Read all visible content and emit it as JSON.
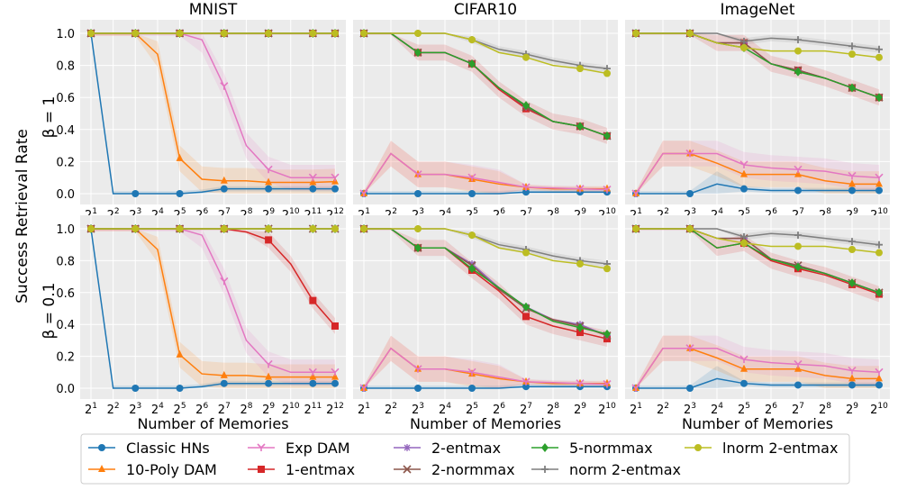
{
  "figure": {
    "ylabel": "Success Retrieval Rate",
    "xlabel": "Number of Memories",
    "row_labels": [
      "β = 1",
      "β = 0.1"
    ],
    "column_titles": [
      "MNIST",
      "CIFAR10",
      "ImageNet"
    ]
  },
  "legend": {
    "entries": [
      {
        "name": "Classic HNs",
        "color": "#1f77b4",
        "marker": "circle"
      },
      {
        "name": "10-Poly DAM",
        "color": "#ff7f0e",
        "marker": "triangle"
      },
      {
        "name": "Exp DAM",
        "color": "#e377c2",
        "marker": "tri_down"
      },
      {
        "name": "1-entmax",
        "color": "#d62728",
        "marker": "square"
      },
      {
        "name": "2-entmax",
        "color": "#9467bd",
        "marker": "star"
      },
      {
        "name": "2-normmax",
        "color": "#8c564b",
        "marker": "x"
      },
      {
        "name": "5-normmax",
        "color": "#2ca02c",
        "marker": "diamond"
      },
      {
        "name": "norm 2-entmax",
        "color": "#7f7f7f",
        "marker": "plus"
      },
      {
        "name": "lnorm 2-entmax",
        "color": "#bcbd22",
        "marker": "circle"
      }
    ]
  },
  "chart_data": [
    {
      "type": "line",
      "title": "MNIST",
      "row_label": "β = 1",
      "panel": "MNIST β=1",
      "x_exponents": [
        1,
        2,
        3,
        4,
        5,
        6,
        7,
        8,
        9,
        10,
        11,
        12
      ],
      "x_tick_labels": [
        "2^1",
        "2^2",
        "2^3",
        "2^4",
        "2^5",
        "2^6",
        "2^7",
        "2^8",
        "2^9",
        "2^10",
        "2^11",
        "2^12"
      ],
      "ylim": [
        0,
        1.05
      ],
      "y_ticks": [
        0.0,
        0.2,
        0.4,
        0.6,
        0.8,
        1.0
      ],
      "series": [
        {
          "name": "Classic HNs",
          "values": [
            1.0,
            0.0,
            0.0,
            0.0,
            0.0,
            0.01,
            0.03,
            0.03,
            0.03,
            0.03,
            0.03,
            0.03
          ]
        },
        {
          "name": "10-Poly DAM",
          "values": [
            1.0,
            1.0,
            1.0,
            0.87,
            0.22,
            0.09,
            0.08,
            0.08,
            0.07,
            0.07,
            0.07,
            0.075
          ]
        },
        {
          "name": "Exp DAM",
          "values": [
            1.0,
            1.0,
            1.0,
            1.0,
            1.0,
            0.96,
            0.67,
            0.3,
            0.15,
            0.1,
            0.1,
            0.1
          ]
        },
        {
          "name": "1-entmax",
          "values": [
            1,
            1,
            1,
            1,
            1,
            1,
            1,
            1,
            1,
            1,
            1,
            1
          ]
        },
        {
          "name": "2-entmax",
          "values": [
            1,
            1,
            1,
            1,
            1,
            1,
            1,
            1,
            1,
            1,
            1,
            1
          ]
        },
        {
          "name": "2-normmax",
          "values": [
            1,
            1,
            1,
            1,
            1,
            1,
            1,
            1,
            1,
            1,
            1,
            1
          ]
        },
        {
          "name": "5-normmax",
          "values": [
            1,
            1,
            1,
            1,
            1,
            1,
            1,
            1,
            1,
            1,
            1,
            1
          ]
        },
        {
          "name": "norm 2-entmax",
          "values": [
            1,
            1,
            1,
            1,
            1,
            1,
            1,
            1,
            1,
            1,
            1,
            1
          ]
        },
        {
          "name": "lnorm 2-entmax",
          "values": [
            1,
            1,
            1,
            1,
            1,
            1,
            1,
            1,
            1,
            1,
            1,
            1
          ]
        }
      ]
    },
    {
      "type": "line",
      "title": "CIFAR10",
      "row_label": "β = 1",
      "panel": "CIFAR10 β=1",
      "x_exponents": [
        1,
        2,
        3,
        4,
        5,
        6,
        7,
        8,
        9,
        10
      ],
      "x_tick_labels": [
        "2^1",
        "2^2",
        "2^3",
        "2^4",
        "2^5",
        "2^6",
        "2^7",
        "2^8",
        "2^9",
        "2^10"
      ],
      "ylim": [
        0,
        1.05
      ],
      "y_ticks": [
        0.0,
        0.2,
        0.4,
        0.6,
        0.8,
        1.0
      ],
      "series": [
        {
          "name": "Classic HNs",
          "values": [
            0.0,
            0.0,
            0.0,
            0.0,
            0.0,
            0.0,
            0.01,
            0.01,
            0.01,
            0.01
          ]
        },
        {
          "name": "10-Poly DAM",
          "values": [
            0.0,
            0.25,
            0.12,
            0.12,
            0.09,
            0.06,
            0.04,
            0.03,
            0.03,
            0.03
          ]
        },
        {
          "name": "Exp DAM",
          "values": [
            0.0,
            0.25,
            0.12,
            0.12,
            0.1,
            0.07,
            0.04,
            0.035,
            0.03,
            0.025
          ]
        },
        {
          "name": "1-entmax",
          "values": [
            1.0,
            1.0,
            0.88,
            0.88,
            0.81,
            0.65,
            0.53,
            0.45,
            0.42,
            0.36
          ]
        },
        {
          "name": "2-entmax",
          "values": [
            1.0,
            1.0,
            0.88,
            0.88,
            0.81,
            0.66,
            0.54,
            0.45,
            0.42,
            0.36
          ]
        },
        {
          "name": "2-normmax",
          "values": [
            1.0,
            1.0,
            0.88,
            0.88,
            0.81,
            0.66,
            0.54,
            0.45,
            0.42,
            0.36
          ]
        },
        {
          "name": "5-normmax",
          "values": [
            1.0,
            1.0,
            0.88,
            0.88,
            0.81,
            0.66,
            0.55,
            0.45,
            0.42,
            0.36
          ]
        },
        {
          "name": "norm 2-entmax",
          "values": [
            1.0,
            1.0,
            1.0,
            1.0,
            0.96,
            0.9,
            0.87,
            0.83,
            0.8,
            0.78
          ]
        },
        {
          "name": "lnorm 2-entmax",
          "values": [
            1.0,
            1.0,
            1.0,
            1.0,
            0.96,
            0.88,
            0.85,
            0.8,
            0.78,
            0.75
          ]
        }
      ]
    },
    {
      "type": "line",
      "title": "ImageNet",
      "row_label": "β = 1",
      "panel": "ImageNet β=1",
      "x_exponents": [
        1,
        2,
        3,
        4,
        5,
        6,
        7,
        8,
        9,
        10
      ],
      "x_tick_labels": [
        "2^1",
        "2^2",
        "2^3",
        "2^4",
        "2^5",
        "2^6",
        "2^7",
        "2^8",
        "2^9",
        "2^10"
      ],
      "ylim": [
        0,
        1.05
      ],
      "y_ticks": [
        0.0,
        0.2,
        0.4,
        0.6,
        0.8,
        1.0
      ],
      "series": [
        {
          "name": "Classic HNs",
          "values": [
            0.0,
            0.0,
            0.0,
            0.06,
            0.03,
            0.02,
            0.02,
            0.02,
            0.02,
            0.02
          ]
        },
        {
          "name": "10-Poly DAM",
          "values": [
            0.0,
            0.25,
            0.25,
            0.19,
            0.12,
            0.12,
            0.12,
            0.08,
            0.06,
            0.06
          ]
        },
        {
          "name": "Exp DAM",
          "values": [
            0.0,
            0.25,
            0.25,
            0.25,
            0.18,
            0.16,
            0.15,
            0.14,
            0.11,
            0.1
          ]
        },
        {
          "name": "1-entmax",
          "values": [
            1.0,
            1.0,
            1.0,
            0.94,
            0.94,
            0.81,
            0.77,
            0.72,
            0.66,
            0.6
          ]
        },
        {
          "name": "2-entmax",
          "values": [
            1.0,
            1.0,
            1.0,
            0.94,
            0.94,
            0.81,
            0.77,
            0.72,
            0.66,
            0.6
          ]
        },
        {
          "name": "2-normmax",
          "values": [
            1.0,
            1.0,
            1.0,
            0.94,
            0.94,
            0.81,
            0.77,
            0.72,
            0.66,
            0.6
          ]
        },
        {
          "name": "5-normmax",
          "values": [
            1.0,
            1.0,
            1.0,
            0.94,
            0.91,
            0.81,
            0.76,
            0.72,
            0.66,
            0.6
          ]
        },
        {
          "name": "norm 2-entmax",
          "values": [
            1.0,
            1.0,
            1.0,
            1.0,
            0.95,
            0.97,
            0.96,
            0.94,
            0.92,
            0.9
          ]
        },
        {
          "name": "lnorm 2-entmax",
          "values": [
            1.0,
            1.0,
            1.0,
            0.94,
            0.91,
            0.89,
            0.89,
            0.89,
            0.87,
            0.85
          ]
        }
      ]
    },
    {
      "type": "line",
      "title": "MNIST",
      "row_label": "β = 0.1",
      "panel": "MNIST β=0.1",
      "x_exponents": [
        1,
        2,
        3,
        4,
        5,
        6,
        7,
        8,
        9,
        10,
        11,
        12
      ],
      "x_tick_labels": [
        "2^1",
        "2^2",
        "2^3",
        "2^4",
        "2^5",
        "2^6",
        "2^7",
        "2^8",
        "2^9",
        "2^10",
        "2^11",
        "2^12"
      ],
      "ylim": [
        0,
        1.05
      ],
      "y_ticks": [
        0.0,
        0.2,
        0.4,
        0.6,
        0.8,
        1.0
      ],
      "series": [
        {
          "name": "Classic HNs",
          "values": [
            1.0,
            0.0,
            0.0,
            0.0,
            0.0,
            0.01,
            0.03,
            0.03,
            0.03,
            0.03,
            0.03,
            0.03
          ]
        },
        {
          "name": "10-Poly DAM",
          "values": [
            1.0,
            1.0,
            1.0,
            0.87,
            0.21,
            0.09,
            0.08,
            0.08,
            0.07,
            0.07,
            0.07,
            0.07
          ]
        },
        {
          "name": "Exp DAM",
          "values": [
            1.0,
            1.0,
            1.0,
            1.0,
            1.0,
            0.96,
            0.67,
            0.3,
            0.15,
            0.1,
            0.1,
            0.1
          ]
        },
        {
          "name": "1-entmax",
          "values": [
            1.0,
            1.0,
            1.0,
            1.0,
            1.0,
            1.0,
            1.0,
            0.98,
            0.93,
            0.78,
            0.55,
            0.39
          ]
        },
        {
          "name": "2-entmax",
          "values": [
            1,
            1,
            1,
            1,
            1,
            1,
            1,
            1,
            1,
            1,
            1,
            1
          ]
        },
        {
          "name": "2-normmax",
          "values": [
            1,
            1,
            1,
            1,
            1,
            1,
            1,
            1,
            1,
            1,
            1,
            1
          ]
        },
        {
          "name": "5-normmax",
          "values": [
            1,
            1,
            1,
            1,
            1,
            1,
            1,
            1,
            1,
            1,
            1,
            1
          ]
        },
        {
          "name": "norm 2-entmax",
          "values": [
            1,
            1,
            1,
            1,
            1,
            1,
            1,
            1,
            1,
            1,
            1,
            1
          ]
        },
        {
          "name": "lnorm 2-entmax",
          "values": [
            1,
            1,
            1,
            1,
            1,
            1,
            1,
            1,
            1,
            1,
            1,
            1
          ]
        }
      ]
    },
    {
      "type": "line",
      "title": "CIFAR10",
      "row_label": "β = 0.1",
      "panel": "CIFAR10 β=0.1",
      "x_exponents": [
        1,
        2,
        3,
        4,
        5,
        6,
        7,
        8,
        9,
        10
      ],
      "x_tick_labels": [
        "2^1",
        "2^2",
        "2^3",
        "2^4",
        "2^5",
        "2^6",
        "2^7",
        "2^8",
        "2^9",
        "2^10"
      ],
      "ylim": [
        0,
        1.05
      ],
      "y_ticks": [
        0.0,
        0.2,
        0.4,
        0.6,
        0.8,
        1.0
      ],
      "series": [
        {
          "name": "Classic HNs",
          "values": [
            0.0,
            0.0,
            0.0,
            0.0,
            0.0,
            0.0,
            0.01,
            0.01,
            0.01,
            0.01
          ]
        },
        {
          "name": "10-Poly DAM",
          "values": [
            0.0,
            0.25,
            0.12,
            0.12,
            0.09,
            0.06,
            0.04,
            0.03,
            0.03,
            0.03
          ]
        },
        {
          "name": "Exp DAM",
          "values": [
            0.0,
            0.25,
            0.12,
            0.12,
            0.1,
            0.07,
            0.04,
            0.035,
            0.03,
            0.025
          ]
        },
        {
          "name": "1-entmax",
          "values": [
            1.0,
            1.0,
            0.88,
            0.88,
            0.74,
            0.61,
            0.45,
            0.39,
            0.35,
            0.31
          ]
        },
        {
          "name": "2-entmax",
          "values": [
            1.0,
            1.0,
            0.88,
            0.88,
            0.78,
            0.63,
            0.51,
            0.43,
            0.4,
            0.33
          ]
        },
        {
          "name": "2-normmax",
          "values": [
            1.0,
            1.0,
            0.88,
            0.88,
            0.77,
            0.62,
            0.5,
            0.43,
            0.39,
            0.33
          ]
        },
        {
          "name": "5-normmax",
          "values": [
            1.0,
            1.0,
            0.88,
            0.88,
            0.75,
            0.63,
            0.51,
            0.42,
            0.38,
            0.34
          ]
        },
        {
          "name": "norm 2-entmax",
          "values": [
            1.0,
            1.0,
            1.0,
            1.0,
            0.96,
            0.9,
            0.87,
            0.83,
            0.8,
            0.78
          ]
        },
        {
          "name": "lnorm 2-entmax",
          "values": [
            1.0,
            1.0,
            1.0,
            1.0,
            0.96,
            0.88,
            0.85,
            0.8,
            0.78,
            0.75
          ]
        }
      ]
    },
    {
      "type": "line",
      "title": "ImageNet",
      "row_label": "β = 0.1",
      "panel": "ImageNet β=0.1",
      "x_exponents": [
        1,
        2,
        3,
        4,
        5,
        6,
        7,
        8,
        9,
        10
      ],
      "x_tick_labels": [
        "2^1",
        "2^2",
        "2^3",
        "2^4",
        "2^5",
        "2^6",
        "2^7",
        "2^8",
        "2^9",
        "2^10"
      ],
      "ylim": [
        0,
        1.05
      ],
      "y_ticks": [
        0.0,
        0.2,
        0.4,
        0.6,
        0.8,
        1.0
      ],
      "series": [
        {
          "name": "Classic HNs",
          "values": [
            0.0,
            0.0,
            0.0,
            0.06,
            0.03,
            0.02,
            0.02,
            0.02,
            0.02,
            0.02
          ]
        },
        {
          "name": "10-Poly DAM",
          "values": [
            0.0,
            0.25,
            0.25,
            0.19,
            0.12,
            0.12,
            0.12,
            0.08,
            0.06,
            0.06
          ]
        },
        {
          "name": "Exp DAM",
          "values": [
            0.0,
            0.25,
            0.25,
            0.25,
            0.18,
            0.16,
            0.15,
            0.14,
            0.11,
            0.1
          ]
        },
        {
          "name": "1-entmax",
          "values": [
            1.0,
            1.0,
            1.0,
            0.88,
            0.91,
            0.8,
            0.75,
            0.71,
            0.65,
            0.59
          ]
        },
        {
          "name": "2-entmax",
          "values": [
            1.0,
            1.0,
            1.0,
            0.94,
            0.94,
            0.81,
            0.77,
            0.72,
            0.66,
            0.6
          ]
        },
        {
          "name": "2-normmax",
          "values": [
            1.0,
            1.0,
            1.0,
            0.94,
            0.94,
            0.81,
            0.77,
            0.72,
            0.66,
            0.6
          ]
        },
        {
          "name": "5-normmax",
          "values": [
            1.0,
            1.0,
            1.0,
            0.88,
            0.91,
            0.81,
            0.76,
            0.72,
            0.66,
            0.6
          ]
        },
        {
          "name": "norm 2-entmax",
          "values": [
            1.0,
            1.0,
            1.0,
            1.0,
            0.95,
            0.97,
            0.96,
            0.94,
            0.92,
            0.9
          ]
        },
        {
          "name": "lnorm 2-entmax",
          "values": [
            1.0,
            1.0,
            1.0,
            0.94,
            0.91,
            0.89,
            0.89,
            0.89,
            0.87,
            0.85
          ]
        }
      ]
    }
  ]
}
